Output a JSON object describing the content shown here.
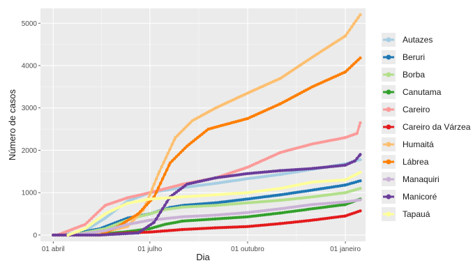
{
  "chart_data": {
    "type": "line",
    "xlabel": "Dia",
    "ylabel": "Número de casos",
    "x_domain": [
      "2020-03-20",
      "2021-01-20"
    ],
    "ylim": [
      -150,
      5350
    ],
    "x_ticks": [
      {
        "date": "2020-04-01",
        "label": "01 abril"
      },
      {
        "date": "2020-07-01",
        "label": "01 julho"
      },
      {
        "date": "2020-10-01",
        "label": "01 outubro"
      },
      {
        "date": "2021-01-01",
        "label": "01 janeiro"
      }
    ],
    "y_ticks": [
      0,
      1000,
      2000,
      3000,
      4000,
      5000
    ],
    "grid": true,
    "legend_position": "right",
    "background": "#ebebeb",
    "series": [
      {
        "name": "Autazes",
        "color": "#a6cee3",
        "points": [
          [
            "2020-04-10",
            0
          ],
          [
            "2020-05-01",
            100
          ],
          [
            "2020-05-20",
            400
          ],
          [
            "2020-06-10",
            800
          ],
          [
            "2020-07-01",
            1000
          ],
          [
            "2020-08-01",
            1120
          ],
          [
            "2020-09-01",
            1220
          ],
          [
            "2020-10-01",
            1330
          ],
          [
            "2020-11-01",
            1430
          ],
          [
            "2020-12-01",
            1550
          ],
          [
            "2021-01-01",
            1680
          ],
          [
            "2021-01-15",
            1780
          ]
        ]
      },
      {
        "name": "Beruri",
        "color": "#1f78b4",
        "points": [
          [
            "2020-04-15",
            0
          ],
          [
            "2020-05-15",
            150
          ],
          [
            "2020-06-10",
            400
          ],
          [
            "2020-07-01",
            500
          ],
          [
            "2020-07-20",
            650
          ],
          [
            "2020-08-01",
            700
          ],
          [
            "2020-09-01",
            760
          ],
          [
            "2020-10-01",
            850
          ],
          [
            "2020-11-01",
            950
          ],
          [
            "2020-12-01",
            1060
          ],
          [
            "2021-01-01",
            1180
          ],
          [
            "2021-01-15",
            1280
          ]
        ]
      },
      {
        "name": "Borba",
        "color": "#b2df8a",
        "points": [
          [
            "2020-04-20",
            0
          ],
          [
            "2020-05-20",
            150
          ],
          [
            "2020-06-15",
            400
          ],
          [
            "2020-07-01",
            500
          ],
          [
            "2020-07-15",
            600
          ],
          [
            "2020-08-01",
            660
          ],
          [
            "2020-09-01",
            700
          ],
          [
            "2020-10-01",
            760
          ],
          [
            "2020-11-01",
            820
          ],
          [
            "2020-12-01",
            900
          ],
          [
            "2021-01-01",
            1000
          ],
          [
            "2021-01-15",
            1100
          ]
        ]
      },
      {
        "name": "Canutama",
        "color": "#33a02c",
        "points": [
          [
            "2020-04-25",
            0
          ],
          [
            "2020-05-20",
            30
          ],
          [
            "2020-06-10",
            80
          ],
          [
            "2020-07-01",
            150
          ],
          [
            "2020-07-15",
            250
          ],
          [
            "2020-08-01",
            330
          ],
          [
            "2020-09-01",
            380
          ],
          [
            "2020-10-01",
            430
          ],
          [
            "2020-11-01",
            520
          ],
          [
            "2020-12-01",
            620
          ],
          [
            "2021-01-01",
            720
          ],
          [
            "2021-01-15",
            850
          ]
        ]
      },
      {
        "name": "Careiro",
        "color": "#fb9a99",
        "points": [
          [
            "2020-04-05",
            0
          ],
          [
            "2020-05-01",
            250
          ],
          [
            "2020-05-20",
            700
          ],
          [
            "2020-06-10",
            880
          ],
          [
            "2020-07-01",
            1000
          ],
          [
            "2020-08-01",
            1200
          ],
          [
            "2020-09-01",
            1350
          ],
          [
            "2020-10-01",
            1600
          ],
          [
            "2020-11-01",
            1950
          ],
          [
            "2020-12-01",
            2150
          ],
          [
            "2021-01-01",
            2300
          ],
          [
            "2021-01-12",
            2400
          ],
          [
            "2021-01-15",
            2650
          ]
        ]
      },
      {
        "name": "Careiro da Várzea",
        "color": "#e31a1c",
        "points": [
          [
            "2020-04-01",
            0
          ],
          [
            "2020-05-15",
            0
          ],
          [
            "2020-06-10",
            50
          ],
          [
            "2020-07-01",
            70
          ],
          [
            "2020-08-01",
            130
          ],
          [
            "2020-09-01",
            170
          ],
          [
            "2020-10-01",
            200
          ],
          [
            "2020-11-01",
            270
          ],
          [
            "2020-12-01",
            350
          ],
          [
            "2021-01-01",
            450
          ],
          [
            "2021-01-15",
            570
          ]
        ]
      },
      {
        "name": "Humaitá",
        "color": "#fdbf6f",
        "points": [
          [
            "2020-04-20",
            0
          ],
          [
            "2020-05-15",
            50
          ],
          [
            "2020-06-10",
            200
          ],
          [
            "2020-06-25",
            600
          ],
          [
            "2020-07-10",
            1500
          ],
          [
            "2020-07-25",
            2300
          ],
          [
            "2020-08-10",
            2700
          ],
          [
            "2020-09-01",
            3000
          ],
          [
            "2020-10-01",
            3350
          ],
          [
            "2020-11-01",
            3700
          ],
          [
            "2020-12-01",
            4200
          ],
          [
            "2021-01-01",
            4700
          ],
          [
            "2021-01-15",
            5200
          ]
        ]
      },
      {
        "name": "Lábrea",
        "color": "#ff7f00",
        "points": [
          [
            "2020-05-15",
            0
          ],
          [
            "2020-06-01",
            200
          ],
          [
            "2020-06-20",
            500
          ],
          [
            "2020-07-05",
            900
          ],
          [
            "2020-07-20",
            1700
          ],
          [
            "2020-08-05",
            2100
          ],
          [
            "2020-08-25",
            2500
          ],
          [
            "2020-10-01",
            2750
          ],
          [
            "2020-11-01",
            3100
          ],
          [
            "2020-12-01",
            3500
          ],
          [
            "2021-01-01",
            3850
          ],
          [
            "2021-01-15",
            4180
          ]
        ]
      },
      {
        "name": "Manaquiri",
        "color": "#cab2d6",
        "points": [
          [
            "2020-04-20",
            0
          ],
          [
            "2020-05-20",
            100
          ],
          [
            "2020-06-10",
            250
          ],
          [
            "2020-07-01",
            350
          ],
          [
            "2020-08-01",
            430
          ],
          [
            "2020-09-01",
            470
          ],
          [
            "2020-10-01",
            530
          ],
          [
            "2020-11-01",
            620
          ],
          [
            "2020-12-01",
            720
          ],
          [
            "2021-01-01",
            780
          ],
          [
            "2021-01-15",
            830
          ]
        ]
      },
      {
        "name": "Manicoré",
        "color": "#6a3d9a",
        "points": [
          [
            "2020-04-01",
            0
          ],
          [
            "2020-05-15",
            0
          ],
          [
            "2020-06-20",
            50
          ],
          [
            "2020-07-05",
            300
          ],
          [
            "2020-07-20",
            900
          ],
          [
            "2020-08-05",
            1200
          ],
          [
            "2020-09-01",
            1350
          ],
          [
            "2020-10-01",
            1450
          ],
          [
            "2020-11-01",
            1520
          ],
          [
            "2020-12-01",
            1570
          ],
          [
            "2021-01-01",
            1650
          ],
          [
            "2021-01-10",
            1750
          ],
          [
            "2021-01-15",
            1900
          ]
        ]
      },
      {
        "name": "Tapauá",
        "color": "#ffff99",
        "points": [
          [
            "2020-04-15",
            0
          ],
          [
            "2020-05-01",
            150
          ],
          [
            "2020-05-20",
            500
          ],
          [
            "2020-06-10",
            750
          ],
          [
            "2020-07-01",
            850
          ],
          [
            "2020-08-01",
            900
          ],
          [
            "2020-09-01",
            950
          ],
          [
            "2020-10-01",
            1000
          ],
          [
            "2020-11-01",
            1100
          ],
          [
            "2020-12-01",
            1250
          ],
          [
            "2021-01-01",
            1300
          ],
          [
            "2021-01-15",
            1480
          ]
        ]
      }
    ]
  }
}
